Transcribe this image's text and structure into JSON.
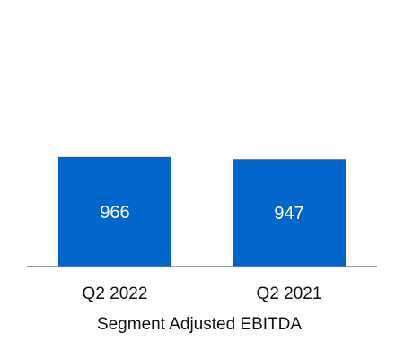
{
  "chart_data": {
    "type": "bar",
    "categories": [
      "Q2 2022",
      "Q2 2021"
    ],
    "values": [
      966,
      947
    ],
    "data_labels": [
      "966",
      "947"
    ],
    "xlabel": "Segment Adjusted EBITDA",
    "ylabel": "",
    "ylim": [
      0,
      1700
    ],
    "grid": false,
    "legend": "none",
    "bar_color": "#0066CC",
    "axis_color": "#7F7F7F",
    "label_color": "#FFFFFF",
    "text_color": "#111111"
  }
}
